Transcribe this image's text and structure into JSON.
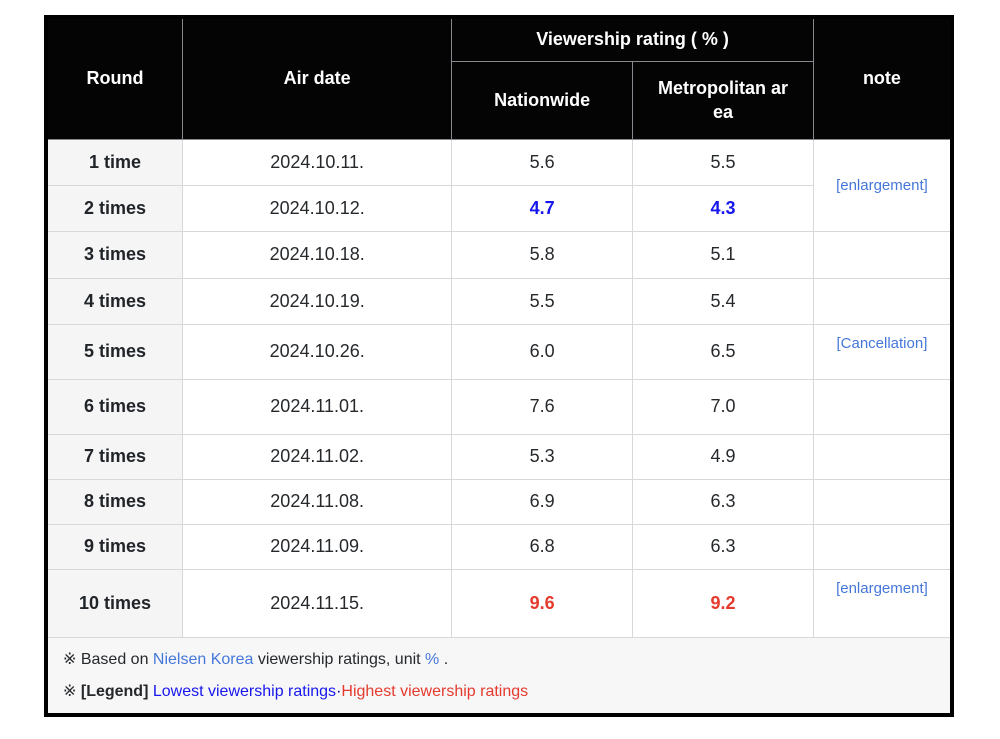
{
  "header": {
    "round": "Round",
    "air_date": "Air date",
    "viewership_group": "Viewership rating ( % )",
    "nationwide": "Nationwide",
    "metropolitan_area": "Metropolitan area",
    "note": "note"
  },
  "rows": [
    {
      "round": "1 time",
      "air_date": "2024.10.11.",
      "nationwide": "5.6",
      "metropolitan": "5.5",
      "value_style": "normal",
      "note": "[enlargement]",
      "note_rowspan": 2
    },
    {
      "round": "2 times",
      "air_date": "2024.10.12.",
      "nationwide": "4.7",
      "metropolitan": "4.3",
      "value_style": "lowest",
      "note_omit": true
    },
    {
      "round": "3 times",
      "air_date": "2024.10.18.",
      "nationwide": "5.8",
      "metropolitan": "5.1",
      "value_style": "normal",
      "note": ""
    },
    {
      "round": "4 times",
      "air_date": "2024.10.19.",
      "nationwide": "5.5",
      "metropolitan": "5.4",
      "value_style": "normal",
      "note": ""
    },
    {
      "round": "5 times",
      "air_date": "2024.10.26.",
      "nationwide": "6.0",
      "metropolitan": "6.5",
      "value_style": "normal",
      "note": "[Cancellation]"
    },
    {
      "round": "6 times",
      "air_date": "2024.11.01.",
      "nationwide": "7.6",
      "metropolitan": "7.0",
      "value_style": "normal",
      "note": ""
    },
    {
      "round": "7 times",
      "air_date": "2024.11.02.",
      "nationwide": "5.3",
      "metropolitan": "4.9",
      "value_style": "normal",
      "note": ""
    },
    {
      "round": "8 times",
      "air_date": "2024.11.08.",
      "nationwide": "6.9",
      "metropolitan": "6.3",
      "value_style": "normal",
      "note": ""
    },
    {
      "round": "9 times",
      "air_date": "2024.11.09.",
      "nationwide": "6.8",
      "metropolitan": "6.3",
      "value_style": "normal",
      "note": ""
    },
    {
      "round": "10 times",
      "air_date": "2024.11.15.",
      "nationwide": "9.6",
      "metropolitan": "9.2",
      "value_style": "highest",
      "note": "[enlargement]"
    }
  ],
  "footnotes": {
    "line1": {
      "prefix": "※ Based on ",
      "nielsen_link": "Nielsen Korea",
      "middle": " viewership ratings, unit ",
      "percent_link": "%",
      "suffix": " ."
    },
    "line2": {
      "prefix": "※ ",
      "legend_label": "[Legend]",
      "space": " ",
      "lowest_label": "Lowest viewership ratings",
      "separator": "·",
      "highest_label": "Highest viewership ratings"
    }
  },
  "colors": {
    "link": "#4577d9",
    "lowest": "#1717ed",
    "highest": "#e53a2e",
    "separator": "#000099",
    "header-bg": "#040404",
    "rowhead-bg": "#f5f5f6",
    "footer-bg": "#f7f7f8"
  }
}
